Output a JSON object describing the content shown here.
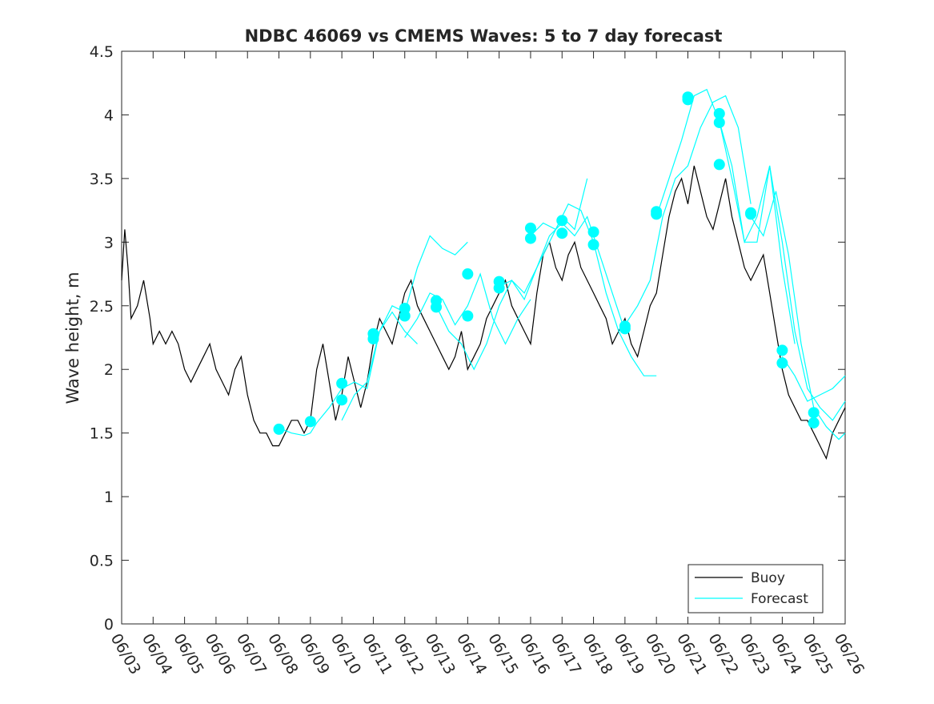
{
  "chart_data": {
    "type": "line",
    "title": "NDBC 46069 vs CMEMS Waves: 5 to 7 day forecast",
    "ylabel": "Wave height, m",
    "xlabel": "",
    "ylim": [
      0,
      4.5
    ],
    "yticks": [
      "0",
      "0.5",
      "1",
      "1.5",
      "2",
      "2.5",
      "3",
      "3.5",
      "4",
      "4.5"
    ],
    "ytick_values": [
      0,
      0.5,
      1,
      1.5,
      2,
      2.5,
      3,
      3.5,
      4,
      4.5
    ],
    "xlim": [
      0,
      23
    ],
    "xticks": [
      "06/03",
      "06/04",
      "06/05",
      "06/06",
      "06/07",
      "06/08",
      "06/09",
      "06/10",
      "06/11",
      "06/12",
      "06/13",
      "06/14",
      "06/15",
      "06/16",
      "06/17",
      "06/18",
      "06/19",
      "06/20",
      "06/21",
      "06/22",
      "06/23",
      "06/24",
      "06/25",
      "06/26"
    ],
    "legend": {
      "position": "bottom-right",
      "entries": [
        "Buoy",
        "Forecast"
      ]
    },
    "colors": {
      "buoy": "#000000",
      "forecast": "#00ffff"
    },
    "series": [
      {
        "name": "Buoy",
        "x": [
          0,
          0.1,
          0.2,
          0.3,
          0.5,
          0.7,
          0.9,
          1.0,
          1.2,
          1.4,
          1.6,
          1.8,
          2.0,
          2.2,
          2.4,
          2.6,
          2.8,
          3.0,
          3.2,
          3.4,
          3.6,
          3.8,
          4.0,
          4.2,
          4.4,
          4.6,
          4.8,
          5.0,
          5.2,
          5.4,
          5.6,
          5.8,
          6.0,
          6.2,
          6.4,
          6.6,
          6.8,
          7.0,
          7.2,
          7.4,
          7.6,
          7.8,
          8.0,
          8.2,
          8.4,
          8.6,
          8.8,
          9.0,
          9.2,
          9.4,
          9.6,
          9.8,
          10.0,
          10.2,
          10.4,
          10.6,
          10.8,
          11.0,
          11.2,
          11.4,
          11.6,
          11.8,
          12.0,
          12.2,
          12.4,
          12.6,
          12.8,
          13.0,
          13.2,
          13.4,
          13.6,
          13.8,
          14.0,
          14.2,
          14.4,
          14.6,
          14.8,
          15.0,
          15.2,
          15.4,
          15.6,
          15.8,
          16.0,
          16.2,
          16.4,
          16.6,
          16.8,
          17.0,
          17.2,
          17.4,
          17.6,
          17.8,
          18.0,
          18.2,
          18.4,
          18.6,
          18.8,
          19.0,
          19.2,
          19.4,
          19.6,
          19.8,
          20.0,
          20.2,
          20.4,
          20.6,
          20.8,
          21.0,
          21.2,
          21.4,
          21.6,
          21.8,
          22.0,
          22.2,
          22.4,
          22.6,
          22.8,
          23.0
        ],
        "y": [
          2.7,
          3.1,
          2.8,
          2.4,
          2.5,
          2.7,
          2.4,
          2.2,
          2.3,
          2.2,
          2.3,
          2.2,
          2.0,
          1.9,
          2.0,
          2.1,
          2.2,
          2.0,
          1.9,
          1.8,
          2.0,
          2.1,
          1.8,
          1.6,
          1.5,
          1.5,
          1.4,
          1.4,
          1.5,
          1.6,
          1.6,
          1.5,
          1.6,
          2.0,
          2.2,
          1.9,
          1.6,
          1.8,
          2.1,
          1.9,
          1.7,
          1.9,
          2.2,
          2.4,
          2.3,
          2.2,
          2.4,
          2.6,
          2.7,
          2.5,
          2.4,
          2.3,
          2.2,
          2.1,
          2.0,
          2.1,
          2.3,
          2.0,
          2.1,
          2.2,
          2.4,
          2.5,
          2.6,
          2.7,
          2.5,
          2.4,
          2.3,
          2.2,
          2.6,
          2.9,
          3.0,
          2.8,
          2.7,
          2.9,
          3.0,
          2.8,
          2.7,
          2.6,
          2.5,
          2.4,
          2.2,
          2.3,
          2.4,
          2.2,
          2.1,
          2.3,
          2.5,
          2.6,
          2.9,
          3.2,
          3.4,
          3.5,
          3.3,
          3.6,
          3.4,
          3.2,
          3.1,
          3.3,
          3.5,
          3.2,
          3.0,
          2.8,
          2.7,
          2.8,
          2.9,
          2.6,
          2.3,
          2.0,
          1.8,
          1.7,
          1.6,
          1.6,
          1.5,
          1.4,
          1.3,
          1.5,
          1.6,
          1.7
        ]
      },
      {
        "name": "Forecast",
        "runs": [
          {
            "x": [
              5.0,
              5.4,
              5.8,
              6.0,
              6.2,
              6.6,
              7.0,
              7.4,
              7.8,
              8.2,
              8.6,
              9.0,
              9.4
            ],
            "y": [
              1.54,
              1.5,
              1.48,
              1.5,
              1.58,
              1.7,
              1.85,
              1.9,
              1.85,
              2.3,
              2.45,
              2.3,
              2.2
            ]
          },
          {
            "x": [
              7.0,
              7.4,
              7.8,
              8.0,
              8.2,
              8.6,
              9.0,
              9.4,
              9.8,
              10.2,
              10.6,
              11.0
            ],
            "y": [
              1.6,
              1.8,
              1.9,
              2.1,
              2.3,
              2.5,
              2.45,
              2.8,
              3.05,
              2.95,
              2.9,
              3.0
            ]
          },
          {
            "x": [
              9.0,
              9.4,
              9.8,
              10.2,
              10.6,
              11.0,
              11.4,
              11.8,
              12.2,
              12.6,
              13.0
            ],
            "y": [
              2.25,
              2.4,
              2.6,
              2.55,
              2.35,
              2.5,
              2.75,
              2.4,
              2.2,
              2.4,
              2.55
            ]
          },
          {
            "x": [
              10.0,
              10.4,
              10.8,
              11.2,
              11.6,
              12.0,
              12.4,
              12.8,
              13.2,
              13.6,
              14.0,
              14.4,
              14.8
            ],
            "y": [
              2.5,
              2.3,
              2.2,
              2.0,
              2.2,
              2.5,
              2.7,
              2.6,
              2.8,
              3.0,
              3.2,
              3.1,
              3.5
            ]
          },
          {
            "x": [
              12.0,
              12.4,
              12.8,
              13.2,
              13.6,
              14.0,
              14.4,
              14.8,
              15.2,
              15.6,
              16.0
            ],
            "y": [
              2.65,
              2.7,
              2.55,
              2.8,
              3.05,
              3.15,
              3.05,
              3.2,
              2.9,
              2.6,
              2.3
            ]
          },
          {
            "x": [
              13.0,
              13.4,
              13.8,
              14.2,
              14.6,
              15.0,
              15.4,
              15.8,
              16.2,
              16.6,
              17.0
            ],
            "y": [
              3.05,
              3.15,
              3.1,
              3.3,
              3.25,
              3.0,
              2.6,
              2.3,
              2.1,
              1.95,
              1.95
            ]
          },
          {
            "x": [
              16.0,
              16.4,
              16.8,
              17.2,
              17.6,
              18.0,
              18.4,
              18.8,
              19.2,
              19.6,
              20.0
            ],
            "y": [
              2.35,
              2.5,
              2.7,
              3.2,
              3.5,
              3.6,
              3.9,
              4.1,
              4.15,
              3.9,
              3.3
            ]
          },
          {
            "x": [
              17.0,
              17.4,
              17.8,
              18.2,
              18.6,
              19.0,
              19.4,
              19.8,
              20.2,
              20.6,
              21.0,
              21.4
            ],
            "y": [
              3.2,
              3.5,
              3.8,
              4.15,
              4.2,
              3.95,
              3.6,
              3.0,
              3.0,
              3.6,
              2.8,
              2.2
            ]
          },
          {
            "x": [
              19.0,
              19.4,
              19.8,
              20.2,
              20.6,
              21.0,
              21.4,
              21.8,
              22.2,
              22.6,
              23.0
            ],
            "y": [
              3.95,
              3.5,
              3.0,
              3.2,
              3.6,
              3.0,
              2.3,
              1.85,
              1.7,
              1.6,
              1.75
            ]
          },
          {
            "x": [
              20.0,
              20.4,
              20.8,
              21.2,
              21.6,
              22.0,
              22.4,
              22.8,
              23.0
            ],
            "y": [
              3.2,
              3.05,
              3.4,
              2.9,
              2.2,
              1.7,
              1.55,
              1.45,
              1.5
            ]
          },
          {
            "x": [
              21.0,
              21.4,
              21.8,
              22.2,
              22.6,
              23.0
            ],
            "y": [
              2.1,
              1.95,
              1.75,
              1.8,
              1.85,
              1.95
            ]
          }
        ],
        "markers": {
          "x": [
            5.0,
            6.0,
            7.0,
            7.0,
            8.0,
            8.0,
            9.0,
            9.0,
            10.0,
            10.0,
            11.0,
            11.0,
            12.0,
            12.0,
            13.0,
            13.0,
            14.0,
            14.0,
            15.0,
            15.0,
            16.0,
            16.0,
            17.0,
            17.0,
            18.0,
            18.0,
            19.0,
            19.0,
            19.0,
            20.0,
            20.0,
            21.0,
            21.0,
            22.0,
            22.0
          ],
          "y": [
            1.53,
            1.59,
            1.89,
            1.76,
            2.28,
            2.24,
            2.48,
            2.42,
            2.54,
            2.49,
            2.75,
            2.42,
            2.69,
            2.64,
            3.11,
            3.03,
            3.17,
            3.07,
            3.08,
            2.98,
            2.34,
            2.32,
            3.24,
            3.22,
            4.14,
            4.12,
            4.01,
            3.94,
            3.61,
            3.23,
            3.22,
            2.15,
            2.05,
            1.66,
            1.58
          ]
        }
      }
    ]
  }
}
